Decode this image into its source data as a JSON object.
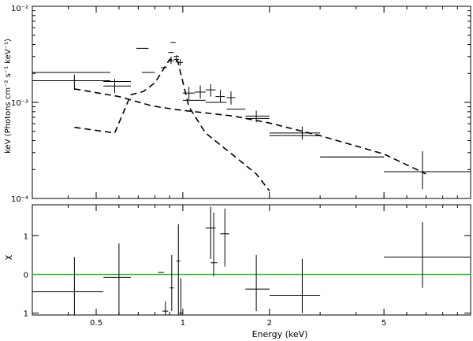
{
  "chart_data": [
    {
      "type": "scatter",
      "panel": "spectrum",
      "ylabel": "keV (Photons cm⁻² s⁻¹ keV⁻¹)",
      "x_scale": "log",
      "y_scale": "log",
      "xlim": [
        0.3,
        10
      ],
      "ylim": [
        0.0001,
        0.01
      ],
      "y_tick_labels": [
        "10⁻⁴",
        "10⁻³",
        "10⁻²"
      ],
      "y_tick_values": [
        0.0001,
        0.001,
        0.01
      ],
      "grid": false,
      "data_points": [
        {
          "x": 0.42,
          "xlo": 0.3,
          "xhi": 0.56,
          "y": 0.00168,
          "ylo": 0.00135,
          "yhi": 0.00195
        },
        {
          "x": 0.58,
          "xlo": 0.53,
          "xhi": 0.66,
          "y": 0.00148,
          "ylo": 0.00125,
          "yhi": 0.00175
        },
        {
          "x": 0.72,
          "xlo": 0.69,
          "xhi": 0.76,
          "y": 0.00365,
          "ylo": 0.00365,
          "yhi": 0.00365
        },
        {
          "x": 0.76,
          "xlo": 0.72,
          "xhi": 0.8,
          "y": 0.00205,
          "ylo": 0.00205,
          "yhi": 0.00205
        },
        {
          "x": 0.86,
          "xlo": 0.84,
          "xhi": 0.88,
          "y": 0.0023,
          "ylo": 0.0023,
          "yhi": 0.0023
        },
        {
          "x": 0.91,
          "xlo": 0.89,
          "xhi": 0.93,
          "y": 0.0027,
          "ylo": 0.0025,
          "yhi": 0.003
        },
        {
          "x": 0.925,
          "xlo": 0.905,
          "xhi": 0.945,
          "y": 0.0042,
          "ylo": 0.0042,
          "yhi": 0.0042
        },
        {
          "x": 0.95,
          "xlo": 0.93,
          "xhi": 0.97,
          "y": 0.0028,
          "ylo": 0.0026,
          "yhi": 0.0031
        },
        {
          "x": 0.98,
          "xlo": 0.96,
          "xhi": 1.0,
          "y": 0.0026,
          "ylo": 0.0024,
          "yhi": 0.0028
        },
        {
          "x": 1.05,
          "xlo": 1.0,
          "xhi": 1.1,
          "y": 0.00125,
          "ylo": 0.00105,
          "yhi": 0.00145
        },
        {
          "x": 1.15,
          "xlo": 1.1,
          "xhi": 1.2,
          "y": 0.00128,
          "ylo": 0.0011,
          "yhi": 0.0015
        },
        {
          "x": 1.25,
          "xlo": 1.2,
          "xhi": 1.3,
          "y": 0.00135,
          "ylo": 0.00115,
          "yhi": 0.00155
        },
        {
          "x": 1.35,
          "xlo": 1.3,
          "xhi": 1.4,
          "y": 0.00115,
          "ylo": 0.001,
          "yhi": 0.00135
        },
        {
          "x": 1.47,
          "xlo": 1.42,
          "xhi": 1.52,
          "y": 0.00112,
          "ylo": 0.00095,
          "yhi": 0.0013
        },
        {
          "x": 1.8,
          "xlo": 1.65,
          "xhi": 2.0,
          "y": 0.00072,
          "ylo": 0.00062,
          "yhi": 0.00082
        },
        {
          "x": 2.6,
          "xlo": 2.0,
          "xhi": 3.0,
          "y": 0.00048,
          "ylo": 0.00041,
          "yhi": 0.00056
        },
        {
          "x": 6.8,
          "xlo": 5.0,
          "xhi": 10.0,
          "y": 0.00019,
          "ylo": 0.000125,
          "yhi": 0.00031
        },
        {
          "x": 4.2,
          "xlo": 3.0,
          "xhi": 5.0,
          "y": 0.00027,
          "ylo": 0.00027,
          "yhi": 0.00027
        }
      ],
      "model_histogram": [
        {
          "xlo": 0.3,
          "xhi": 0.56,
          "y": 0.00205
        },
        {
          "xlo": 0.53,
          "xhi": 0.66,
          "y": 0.00165
        },
        {
          "xlo": 0.89,
          "xhi": 0.93,
          "y": 0.0033
        },
        {
          "xlo": 0.93,
          "xhi": 0.97,
          "y": 0.003
        },
        {
          "xlo": 1.0,
          "xhi": 1.2,
          "y": 0.00105
        },
        {
          "xlo": 1.2,
          "xhi": 1.42,
          "y": 0.001
        },
        {
          "xlo": 1.42,
          "xhi": 1.65,
          "y": 0.00085
        },
        {
          "xlo": 1.65,
          "xhi": 2.0,
          "y": 0.00068
        },
        {
          "xlo": 2.0,
          "xhi": 3.0,
          "y": 0.00045
        },
        {
          "xlo": 3.0,
          "xhi": 5.0,
          "y": 0.00027
        },
        {
          "xlo": 5.0,
          "xhi": 10.0,
          "y": 0.00019
        }
      ],
      "series": [
        {
          "style": "dashed",
          "x": [
            0.42,
            0.6,
            0.78,
            0.95,
            1.5,
            2.0,
            3.0,
            5.0,
            7.0
          ],
          "y": [
            0.00138,
            0.00115,
            0.00092,
            0.00084,
            0.00072,
            0.00061,
            0.00045,
            0.00029,
            0.00018
          ]
        },
        {
          "style": "dashed",
          "x": [
            0.42,
            0.58,
            0.66,
            0.73,
            0.8,
            0.9,
            0.96,
            1.05,
            1.2,
            1.5,
            1.8,
            2.0
          ],
          "y": [
            0.00055,
            0.00048,
            0.0012,
            0.0013,
            0.0016,
            0.0028,
            0.0027,
            0.0009,
            0.00048,
            0.00028,
            0.00018,
            0.00012
          ]
        }
      ]
    },
    {
      "type": "scatter",
      "panel": "residuals",
      "xlabel": "Energy (keV)",
      "ylabel": "χ",
      "x_scale": "log",
      "xlim": [
        0.3,
        10
      ],
      "ylim": [
        -1.05,
        1.8
      ],
      "x_tick_labels": [
        "0.5",
        "1",
        "2",
        "5"
      ],
      "x_tick_values": [
        0.5,
        1,
        2,
        5
      ],
      "y_tick_labels": [
        "1",
        "0",
        "1"
      ],
      "y_tick_values": [
        1,
        0,
        -1
      ],
      "zero_line_color": "#00dd00",
      "grid": false,
      "data_points": [
        {
          "x": 0.42,
          "xlo": 0.3,
          "xhi": 0.53,
          "y": -0.45,
          "ylo": -1.05,
          "yhi": 0.45
        },
        {
          "x": 0.6,
          "xlo": 0.53,
          "xhi": 0.66,
          "y": -0.08,
          "ylo": -1.05,
          "yhi": 0.8
        },
        {
          "x": 0.84,
          "xlo": 0.82,
          "xhi": 0.86,
          "y": 0.05,
          "ylo": 0.05,
          "yhi": 0.05
        },
        {
          "x": 0.87,
          "xlo": 0.85,
          "xhi": 0.89,
          "y": -0.95,
          "ylo": -1.05,
          "yhi": -0.7
        },
        {
          "x": 0.915,
          "xlo": 0.9,
          "xhi": 0.93,
          "y": -0.35,
          "ylo": -0.95,
          "yhi": 0.5
        },
        {
          "x": 0.965,
          "xlo": 0.95,
          "xhi": 0.98,
          "y": 0.35,
          "ylo": -1.05,
          "yhi": 1.3
        },
        {
          "x": 0.985,
          "xlo": 0.97,
          "xhi": 1.0,
          "y": -1.0,
          "ylo": -1.05,
          "yhi": -0.1
        },
        {
          "x": 1.25,
          "xlo": 1.2,
          "xhi": 1.3,
          "y": 1.2,
          "ylo": 0.4,
          "yhi": 1.75
        },
        {
          "x": 1.28,
          "xlo": 1.25,
          "xhi": 1.32,
          "y": 0.3,
          "ylo": -0.05,
          "yhi": 1.6
        },
        {
          "x": 1.4,
          "xlo": 1.35,
          "xhi": 1.45,
          "y": 1.05,
          "ylo": 0.2,
          "yhi": 1.7
        },
        {
          "x": 1.8,
          "xlo": 1.65,
          "xhi": 2.0,
          "y": -0.38,
          "ylo": -0.95,
          "yhi": 0.5
        },
        {
          "x": 2.6,
          "xlo": 2.0,
          "xhi": 3.0,
          "y": -0.55,
          "ylo": -1.0,
          "yhi": 0.4
        },
        {
          "x": 6.8,
          "xlo": 5.0,
          "xhi": 10.0,
          "y": 0.45,
          "ylo": -0.35,
          "yhi": 1.35
        }
      ]
    }
  ]
}
